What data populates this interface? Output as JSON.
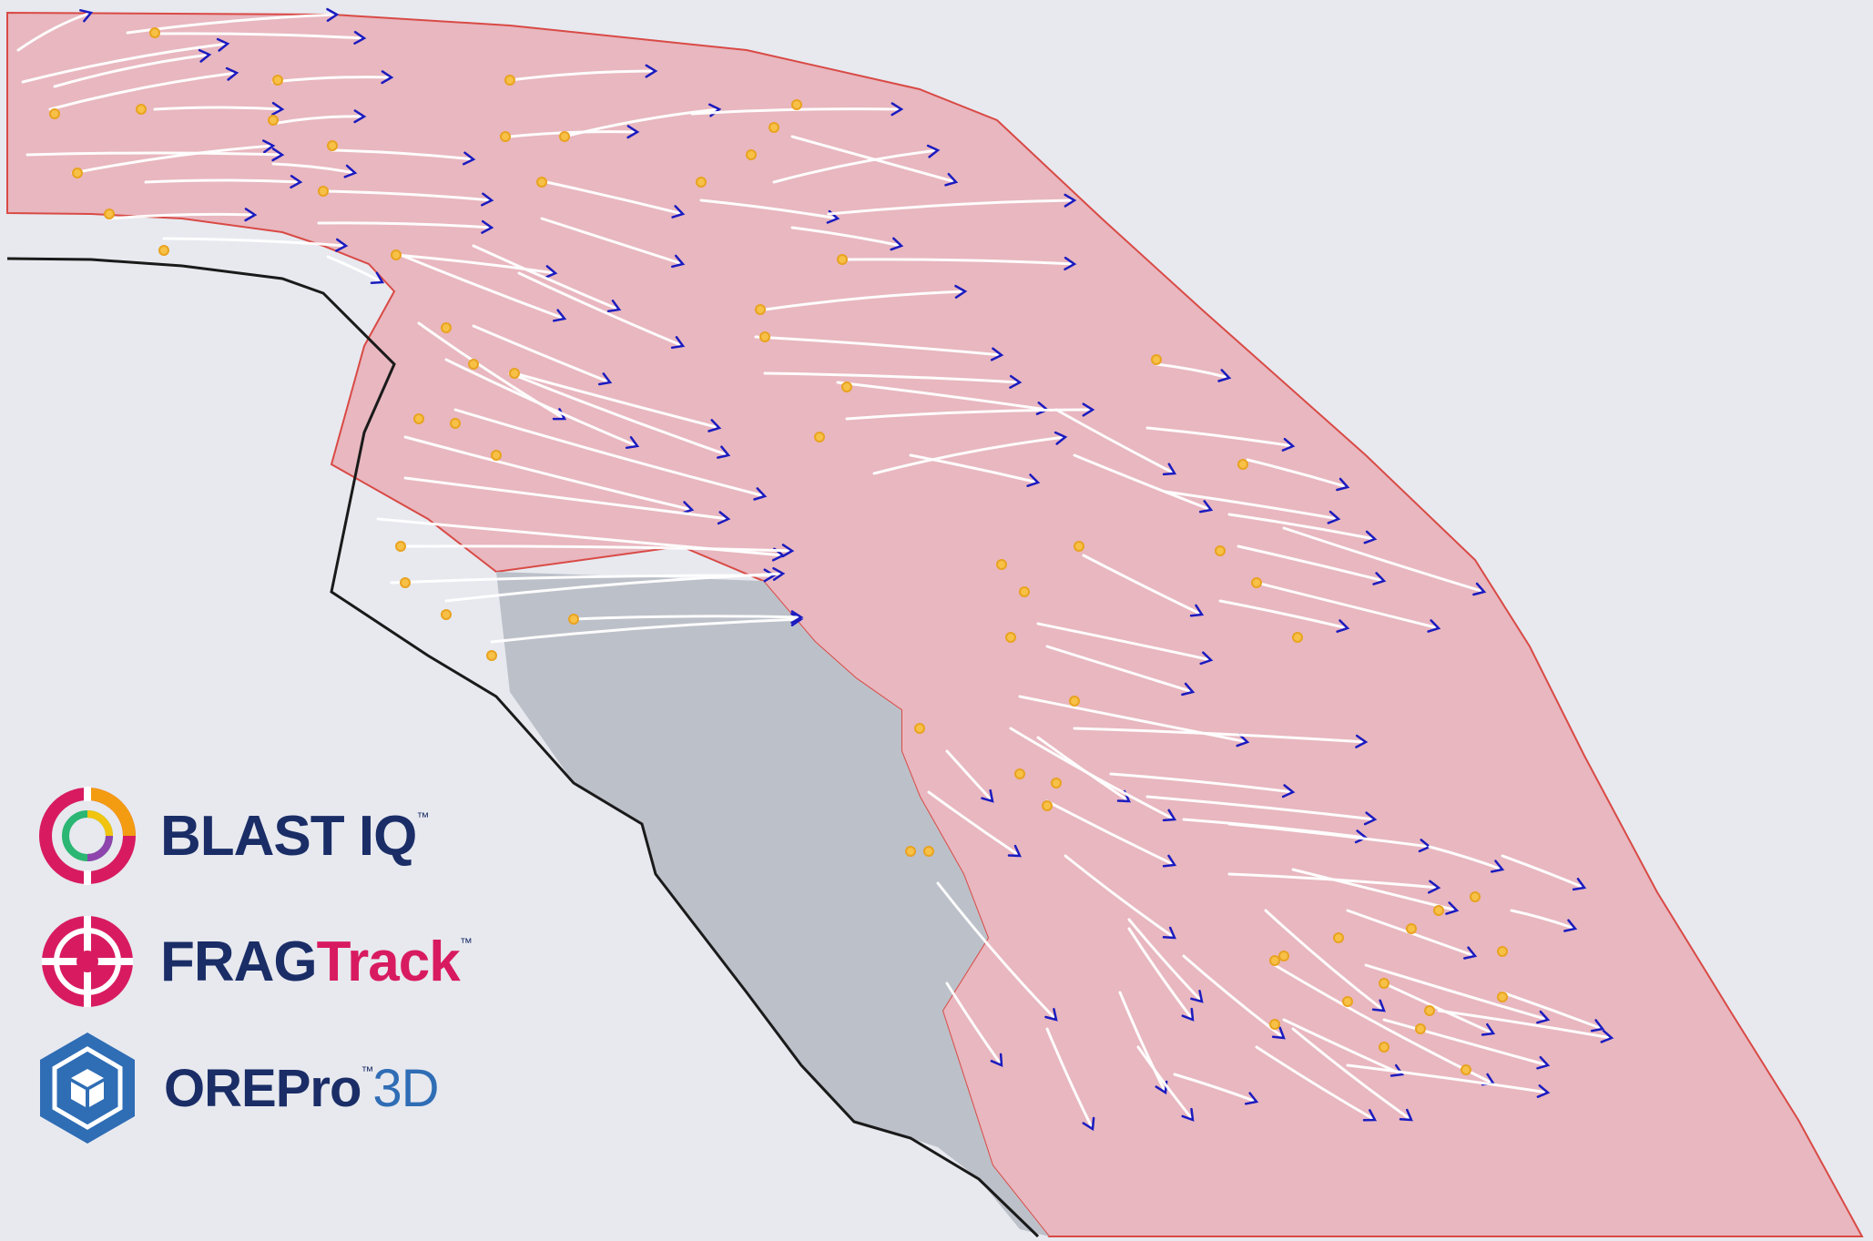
{
  "scene": {
    "description_colors": {
      "background": "#e7e9ef",
      "zone_fill": "#e8b7bf",
      "zone_edge": "#d94a45",
      "floor_fill": "#bcc0c9",
      "pit_edge": "#1a1a1a",
      "trail": "#ffffff",
      "origin_marker": "#e9a320",
      "arrow_head": "#1b1bbf"
    },
    "icons": [
      "origin-marker-icon",
      "movement-arrow-icon"
    ]
  },
  "logos": {
    "blastiq": {
      "main": "BLAST",
      "accent": "IQ",
      "tm": "™",
      "icon": "blastiq-ring-icon",
      "color_main": "#1a2d66",
      "color_ring": [
        "#d81b60",
        "#f39c12",
        "#8e44ad",
        "#2bb673"
      ]
    },
    "fragtrack": {
      "main": "FRAG",
      "accent": "Track",
      "tm": "™",
      "icon": "fragtrack-crosshair-icon",
      "color_main": "#1a2d66",
      "color_accent": "#d81b60"
    },
    "orepro": {
      "main": "ORE",
      "mid": "Pro",
      "tm": "™",
      "accent": "3D",
      "icon": "orepro-hexcube-icon",
      "color_main": "#1a2d66",
      "color_accent": "#2f6db5"
    }
  }
}
